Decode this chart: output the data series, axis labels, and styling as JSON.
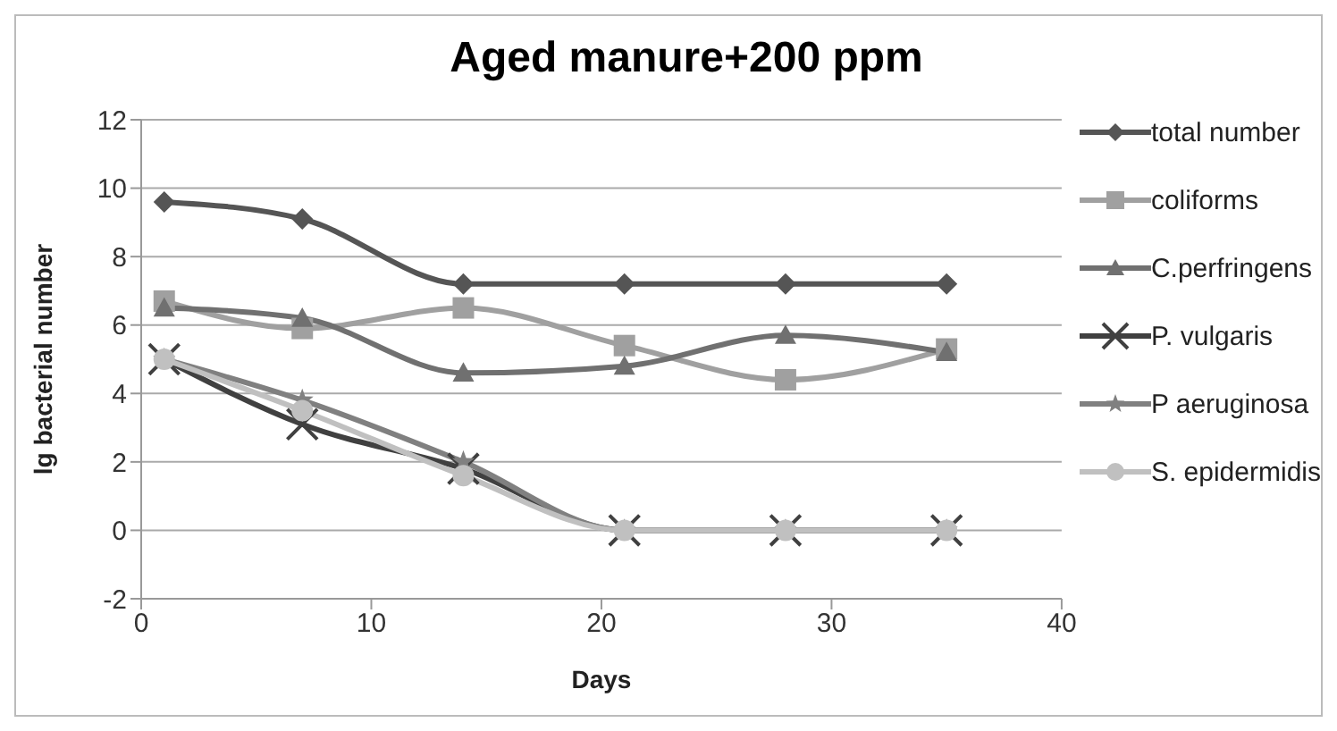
{
  "chart_data": {
    "type": "line",
    "title": "Aged manure+200 ppm",
    "xlabel": "Days",
    "ylabel": "lg bacterial number",
    "x": [
      1,
      7,
      14,
      21,
      28,
      35
    ],
    "series": [
      {
        "name": "total number",
        "color": "#555555",
        "marker": "diamond",
        "values": [
          9.6,
          9.1,
          7.2,
          7.2,
          7.2,
          7.2
        ]
      },
      {
        "name": "coliforms",
        "color": "#a0a0a0",
        "marker": "square",
        "values": [
          6.7,
          5.9,
          6.5,
          5.4,
          4.4,
          5.3
        ]
      },
      {
        "name": "C.perfringens",
        "color": "#707070",
        "marker": "triangle",
        "values": [
          6.5,
          6.2,
          4.6,
          4.8,
          5.7,
          5.2
        ]
      },
      {
        "name": "P. vulgaris",
        "color": "#404040",
        "marker": "cross",
        "values": [
          5.0,
          3.1,
          1.8,
          0,
          0,
          0
        ]
      },
      {
        "name": "P aeruginosa",
        "color": "#808080",
        "marker": "star",
        "values": [
          5.0,
          3.8,
          2.0,
          0,
          0,
          0
        ]
      },
      {
        "name": "S. epidermidis",
        "color": "#c0c0c0",
        "marker": "circle",
        "values": [
          5.0,
          3.5,
          1.6,
          0,
          0,
          0
        ]
      }
    ],
    "xlim": [
      0,
      40
    ],
    "xticks": [
      0,
      10,
      20,
      30,
      40
    ],
    "ylim": [
      -2,
      12
    ],
    "yticks": [
      -2,
      0,
      2,
      4,
      6,
      8,
      10,
      12
    ],
    "grid": "y",
    "legend": "right"
  }
}
